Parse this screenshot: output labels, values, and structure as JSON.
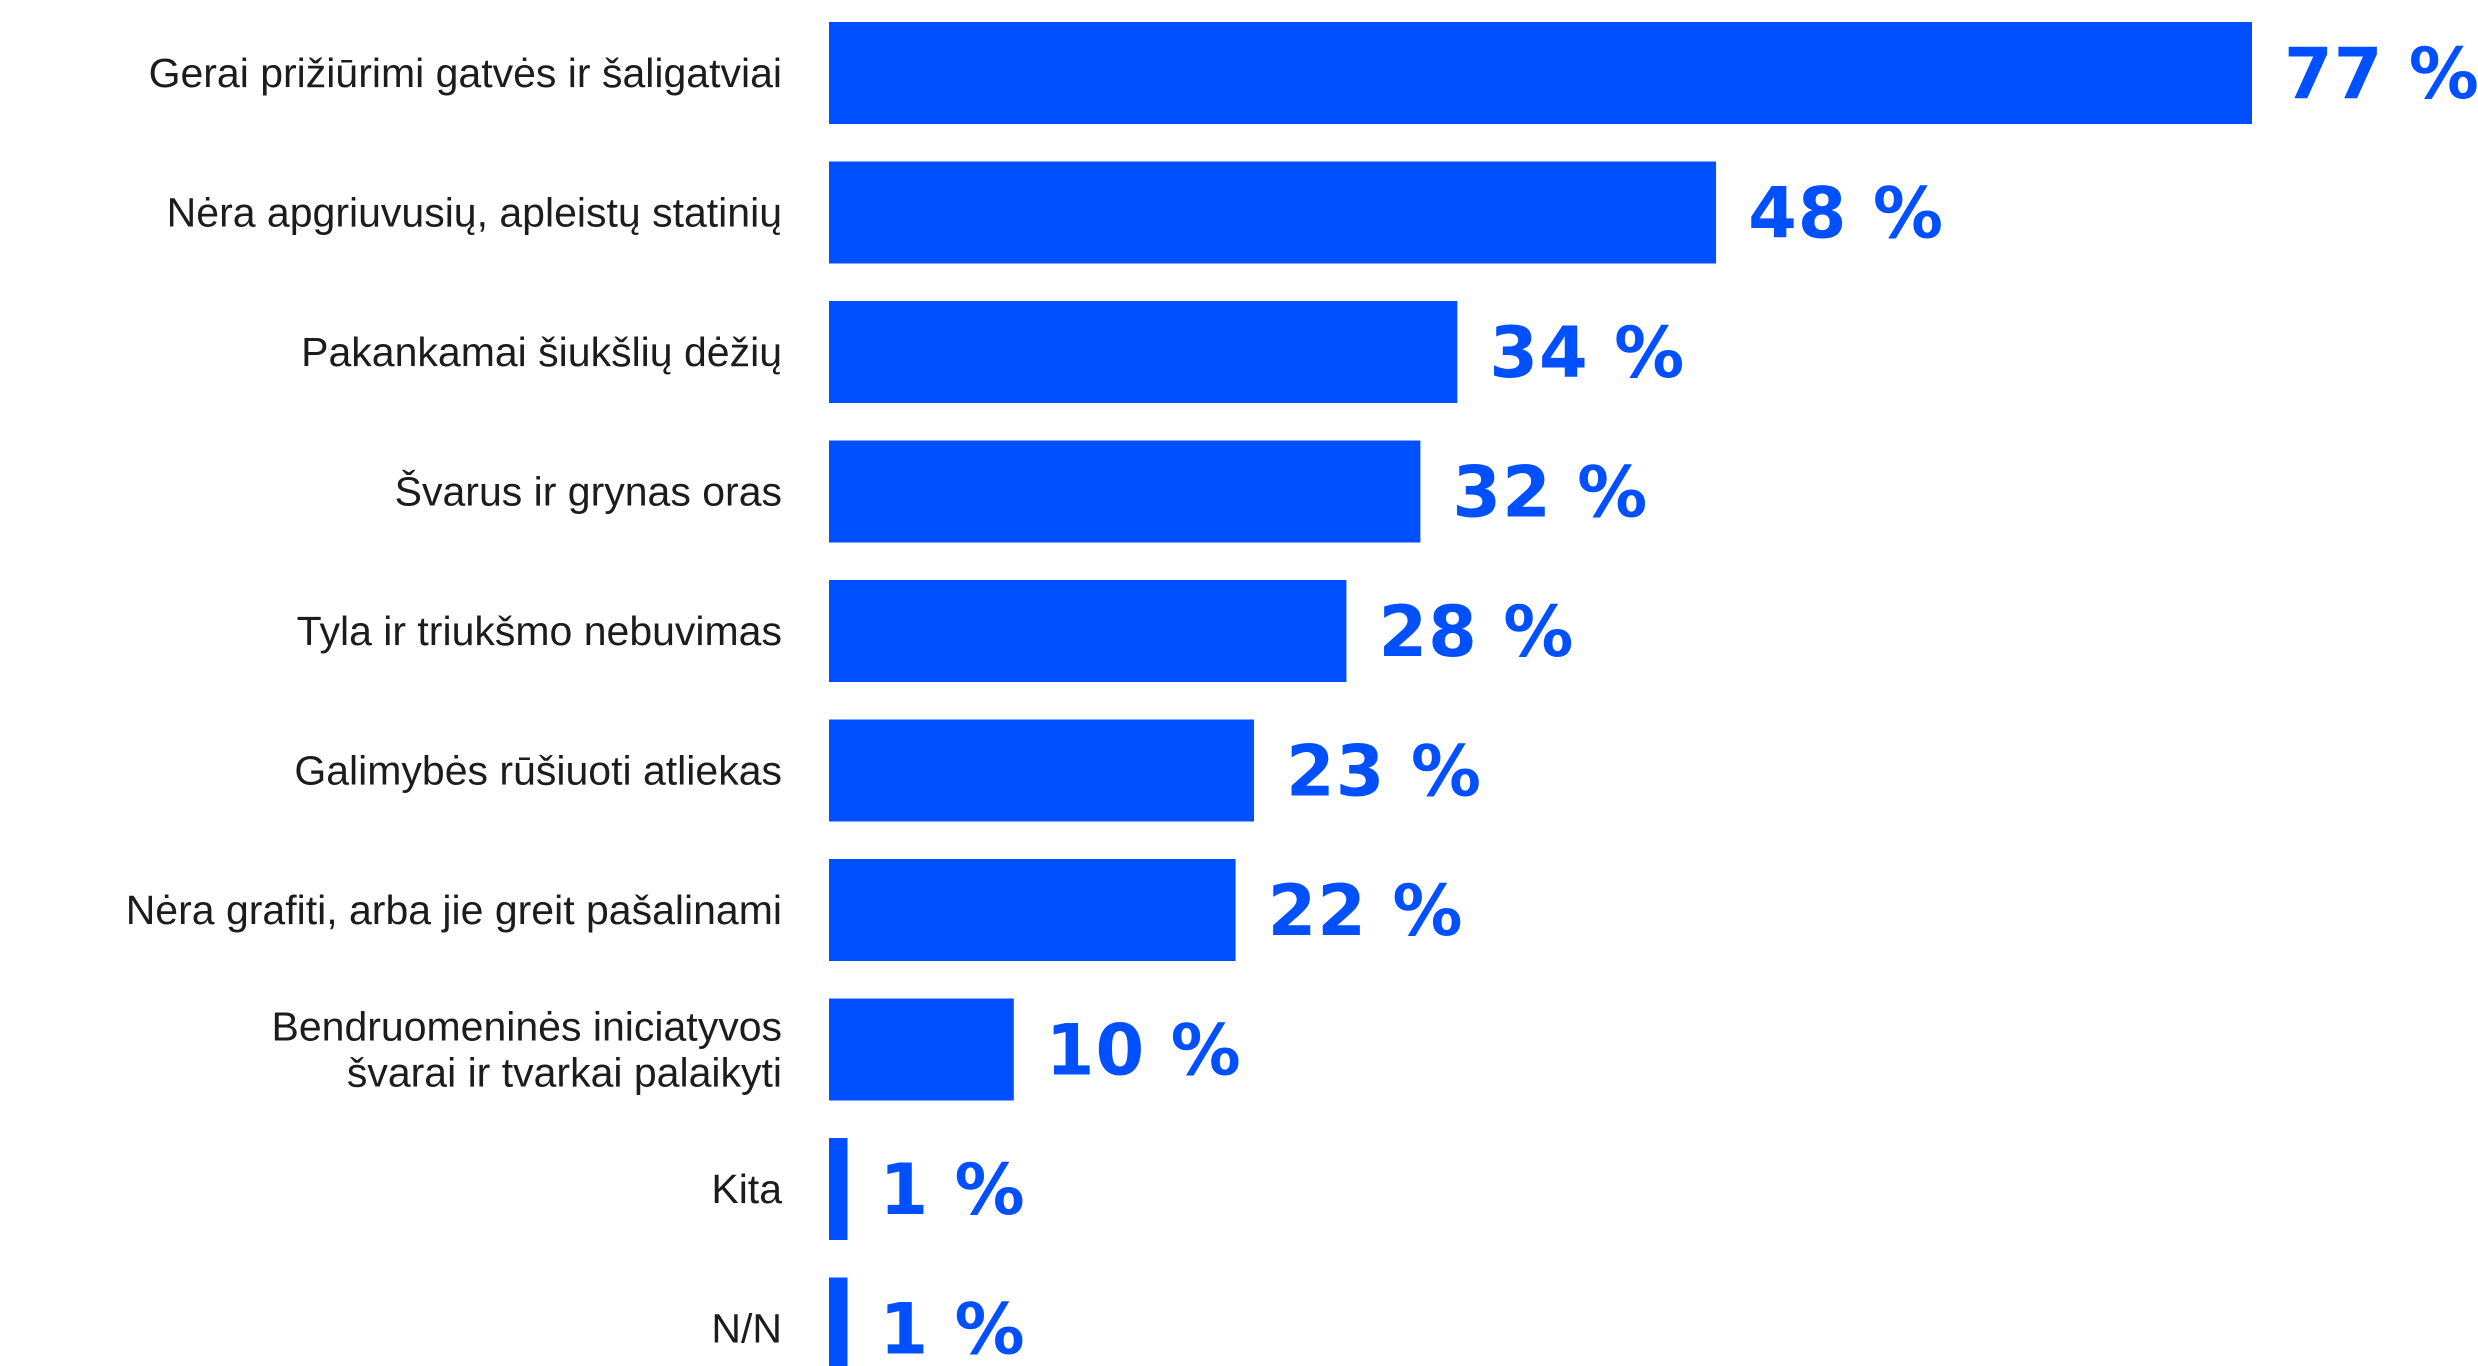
{
  "chart_data": {
    "type": "bar",
    "orientation": "horizontal",
    "categories": [
      [
        "Gerai prižiūrimi gatvės ir šaligatviai"
      ],
      [
        "Nėra apgriuvusių, apleistų statinių"
      ],
      [
        "Pakankamai šiukšlių dėžių"
      ],
      [
        "Švarus ir grynas oras"
      ],
      [
        "Tyla ir triukšmo nebuvimas"
      ],
      [
        "Galimybės rūšiuoti atliekas"
      ],
      [
        "Nėra grafiti, arba jie greit pašalinami"
      ],
      [
        "Bendruomeninės iniciatyvos",
        "švarai ir tvarkai palaikyti"
      ],
      [
        "Kita"
      ],
      [
        "N/N"
      ]
    ],
    "values": [
      77,
      48,
      34,
      32,
      28,
      23,
      22,
      10,
      1,
      1
    ],
    "value_labels": [
      "77 %",
      "48 %",
      "34 %",
      "32 %",
      "28 %",
      "23 %",
      "22 %",
      "10 %",
      "1 %",
      "1 %"
    ],
    "title": "",
    "xlabel": "",
    "ylabel": "",
    "xlim": [
      0,
      77
    ],
    "grid": false,
    "legend": "none",
    "bar_color": "#0050ff",
    "label_color": "#0050ff"
  }
}
